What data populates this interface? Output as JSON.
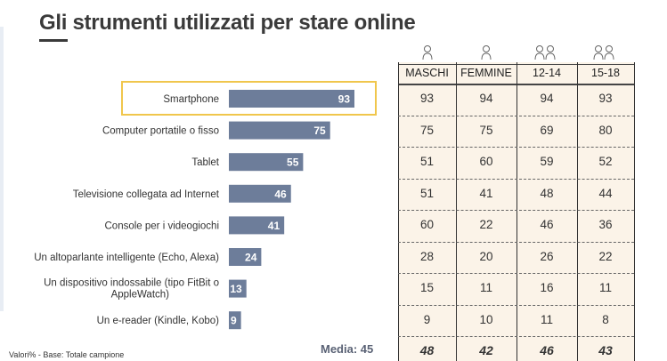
{
  "title": "Gli strumenti utilizzati per stare online",
  "footnote": "Valori% - Base: Totale campione",
  "media_label": "Media: 45",
  "colors": {
    "bar": "#6d7d9a",
    "highlight": "#f0c64c",
    "table_bg": "#fbf3e8"
  },
  "chart_data": {
    "type": "bar",
    "orientation": "horizontal",
    "categories": [
      "Smartphone",
      "Computer portatile o fisso",
      "Tablet",
      "Televisione collegata ad Internet",
      "Console per i videogiochi",
      "Un altoparlante intelligente (Echo, Alexa)",
      "Un dispositivo indossabile (tipo FitBit o AppleWatch)",
      "Un e-reader (Kindle, Kobo)"
    ],
    "values": [
      93,
      75,
      55,
      46,
      41,
      24,
      13,
      9
    ],
    "highlighted_category": "Smartphone"
  },
  "table": {
    "columns": [
      {
        "label": "MASCHI",
        "icon": "male-person-icon"
      },
      {
        "label": "FEMMINE",
        "icon": "female-person-icon"
      },
      {
        "label": "12-14",
        "icon": "two-children-icon"
      },
      {
        "label": "15-18",
        "icon": "two-teens-icon"
      }
    ],
    "rows": [
      [
        "93",
        "94",
        "94",
        "93"
      ],
      [
        "75",
        "75",
        "69",
        "80"
      ],
      [
        "51",
        "60",
        "59",
        "52"
      ],
      [
        "51",
        "41",
        "48",
        "44"
      ],
      [
        "60",
        "22",
        "46",
        "36"
      ],
      [
        "28",
        "20",
        "26",
        "22"
      ],
      [
        "15",
        "11",
        "16",
        "11"
      ],
      [
        "9",
        "10",
        "11",
        "8"
      ]
    ],
    "totals": [
      "48",
      "42",
      "46",
      "43"
    ]
  }
}
